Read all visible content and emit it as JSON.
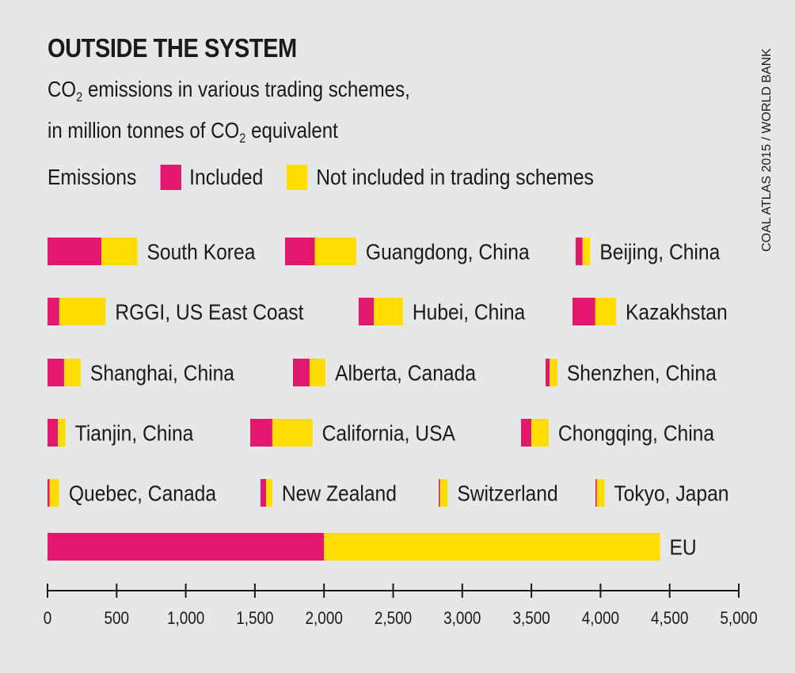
{
  "title": "OUTSIDE THE SYSTEM",
  "subtitle": {
    "line1_pre": "CO",
    "line1_sub": "2",
    "line1_post": " emissions in various trading schemes,",
    "line2_pre": "in million tonnes of CO",
    "line2_sub": "2",
    "line2_post": " equivalent"
  },
  "legend": {
    "label": "Emissions",
    "included": "Included",
    "not_included": "Not included in trading schemes"
  },
  "source": "COAL ATLAS 2015 / WORLD BANK",
  "colors": {
    "included": "#e2186f",
    "not_included": "#ffdd00",
    "background": "#e6e7e8",
    "axis": "#1a1a1a"
  },
  "chart_data": {
    "type": "bar",
    "stacked": true,
    "orientation": "horizontal",
    "series_names": [
      "Included",
      "Not included in trading schemes"
    ],
    "xlim": [
      0,
      5000
    ],
    "xticks": [
      "0",
      "500",
      "1,000",
      "1,500",
      "2,000",
      "2,500",
      "3,000",
      "3,500",
      "4,000",
      "4,500",
      "5,000"
    ],
    "xtick_values": [
      0,
      500,
      1000,
      1500,
      2000,
      2500,
      3000,
      3500,
      4000,
      4500,
      5000
    ],
    "rows": [
      [
        {
          "label": "South Korea",
          "included": 390,
          "not_included": 260
        },
        {
          "label": "Guangdong, China",
          "included": 215,
          "not_included": 300
        },
        {
          "label": "Beijing, China",
          "included": 50,
          "not_included": 55
        }
      ],
      [
        {
          "label": "RGGI, US East Coast",
          "included": 85,
          "not_included": 335
        },
        {
          "label": "Hubei, China",
          "included": 110,
          "not_included": 210
        },
        {
          "label": "Kazakhstan",
          "included": 165,
          "not_included": 150
        }
      ],
      [
        {
          "label": "Shanghai, China",
          "included": 120,
          "not_included": 120
        },
        {
          "label": "Alberta, Canada",
          "included": 120,
          "not_included": 115
        },
        {
          "label": "Shenzhen, China",
          "included": 30,
          "not_included": 55
        }
      ],
      [
        {
          "label": "Tianjin, China",
          "included": 75,
          "not_included": 55
        },
        {
          "label": "California, USA",
          "included": 160,
          "not_included": 290
        },
        {
          "label": "Chongqing, China",
          "included": 75,
          "not_included": 125
        }
      ],
      [
        {
          "label": "Quebec, Canada",
          "included": 15,
          "not_included": 70
        },
        {
          "label": "New Zealand",
          "included": 40,
          "not_included": 45
        },
        {
          "label": "Switzerland",
          "included": 10,
          "not_included": 55
        },
        {
          "label": "Tokyo, Japan",
          "included": 10,
          "not_included": 55
        }
      ],
      [
        {
          "label": "EU",
          "included": 2000,
          "not_included": 2430
        }
      ]
    ]
  }
}
